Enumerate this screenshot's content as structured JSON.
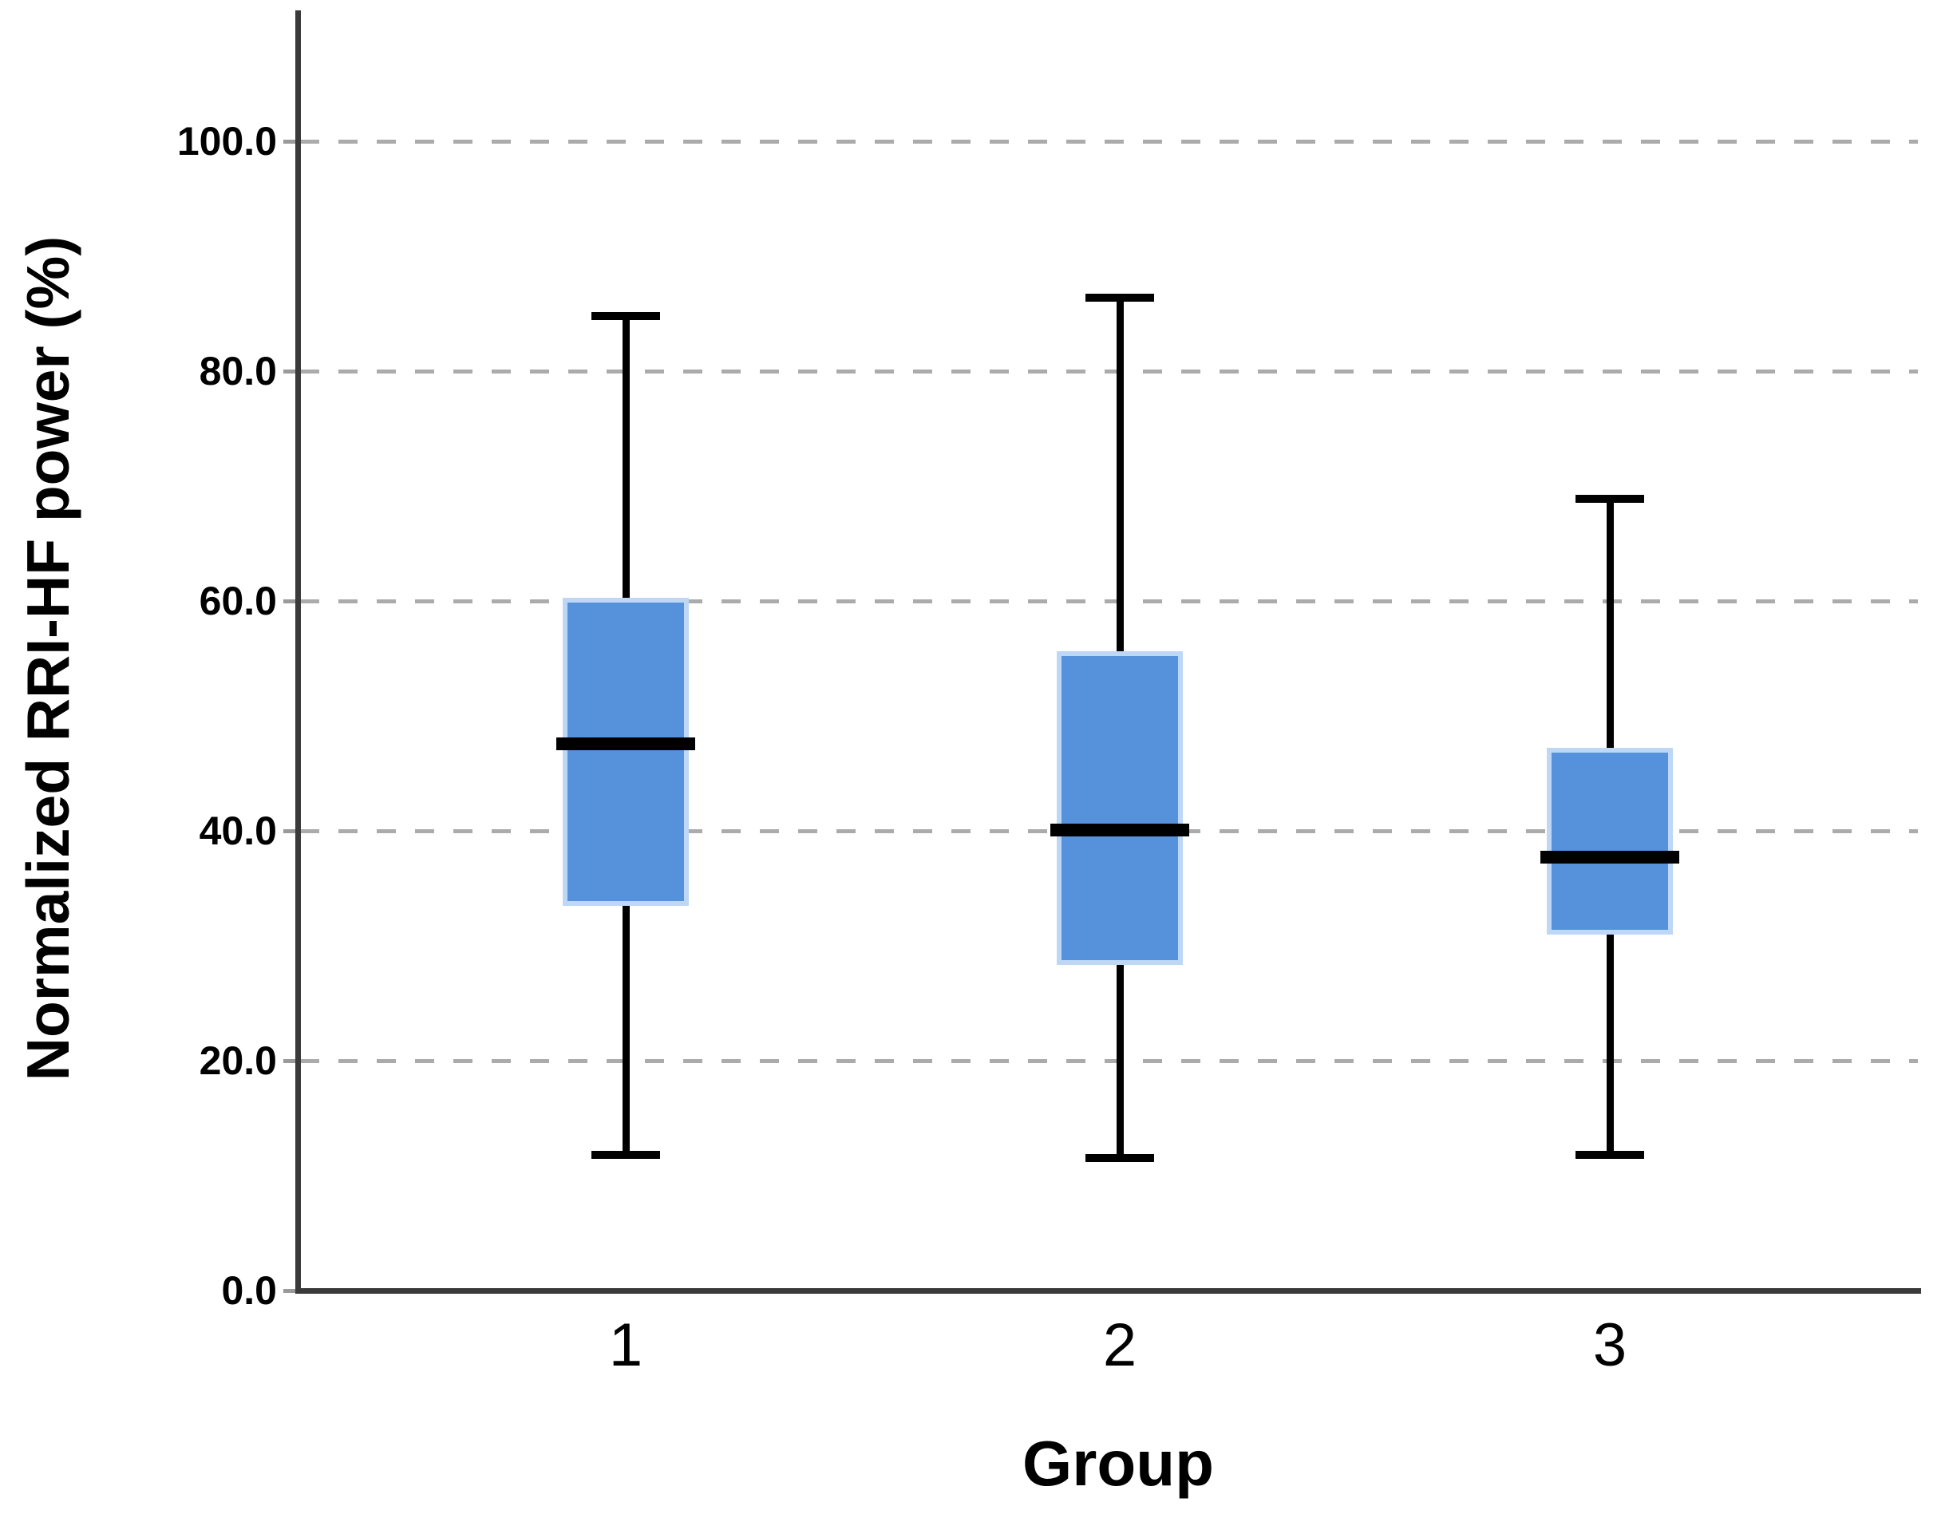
{
  "chart_data": {
    "type": "boxplot",
    "title": "",
    "xlabel": "Group",
    "ylabel": "Normalized RRI-HF power (%)",
    "categories": [
      "1",
      "2",
      "3"
    ],
    "ytick_values": [
      0,
      20,
      40,
      60,
      80,
      100
    ],
    "ytick_labels": [
      "0.0",
      "20.0",
      "40.0",
      "60.0",
      "80.0",
      "100.0"
    ],
    "ylim": [
      0,
      111
    ],
    "grid": "horizontal dashed gridlines at 20, 40, 60, 80, 100; none at 0",
    "legend": "none",
    "series": [
      {
        "category": "1",
        "whisker_low": 11.8,
        "q1": 33.5,
        "median": 47.6,
        "q3": 60.3,
        "whisker_high": 84.8
      },
      {
        "category": "2",
        "whisker_low": 11.5,
        "q1": 28.3,
        "median": 40.1,
        "q3": 55.6,
        "whisker_high": 86.4
      },
      {
        "category": "3",
        "whisker_low": 11.8,
        "q1": 31.0,
        "median": 37.7,
        "q3": 47.2,
        "whisker_high": 68.9
      }
    ],
    "colors": {
      "box_fill": "#5692DC",
      "box_edge": "#BDD7F5",
      "median": "#000000",
      "whisker": "#000000",
      "axis": "#3a3a3a",
      "gridline": "#ababab",
      "tick_label": "#000000",
      "background": "#ffffff"
    }
  }
}
